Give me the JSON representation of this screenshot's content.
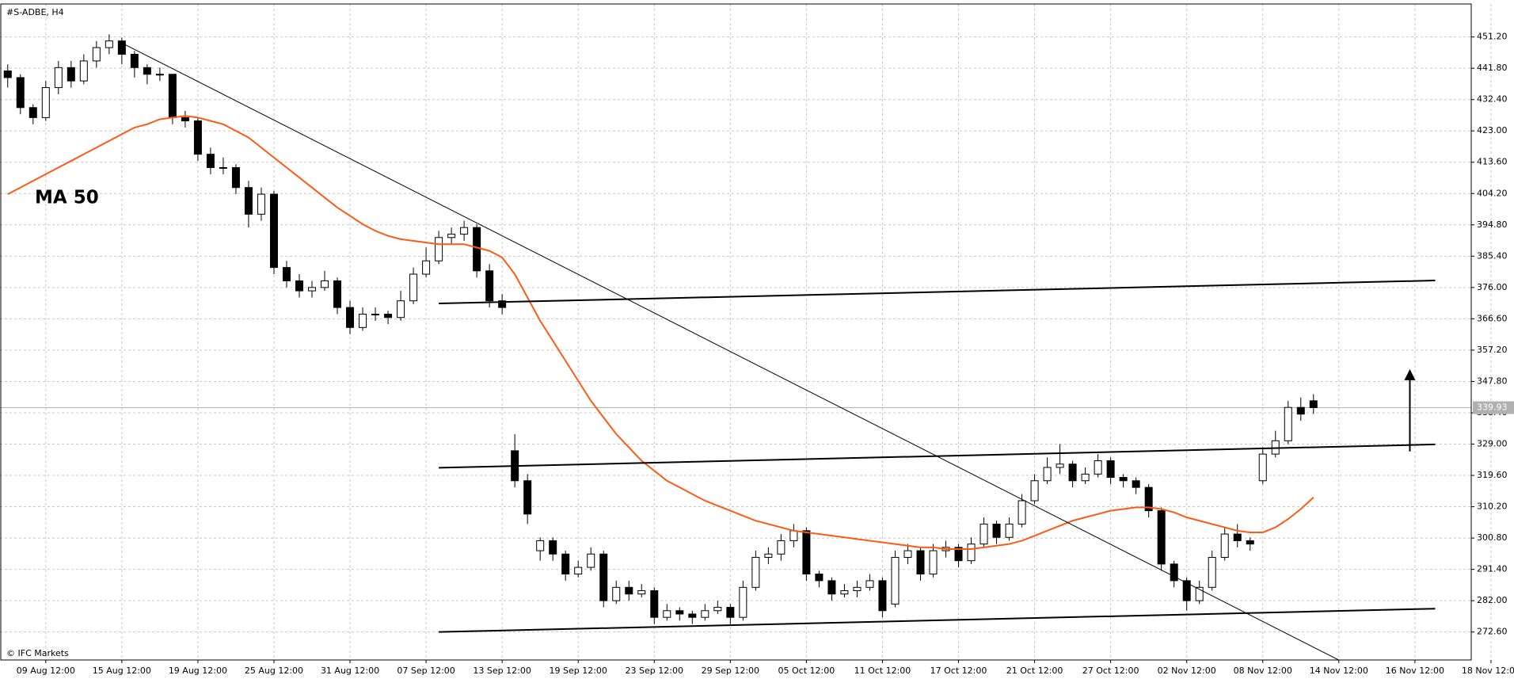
{
  "chart_data": {
    "type": "candlestick",
    "title": "#S-ADBE, H4",
    "source": "© IFC Markets",
    "categories": [
      null,
      null,
      null,
      "09 Aug 12:00",
      null,
      null,
      null,
      null,
      null,
      "15 Aug 12:00",
      null,
      null,
      null,
      null,
      null,
      "19 Aug 12:00",
      null,
      null,
      null,
      null,
      null,
      "25 Aug 12:00",
      null,
      null,
      null,
      null,
      null,
      "31 Aug 12:00",
      null,
      null,
      null,
      null,
      null,
      "07 Sep 12:00",
      null,
      null,
      null,
      null,
      null,
      "13 Sep 12:00",
      null,
      null,
      null,
      null,
      null,
      "19 Sep 12:00",
      null,
      null,
      null,
      null,
      null,
      "23 Sep 12:00",
      null,
      null,
      null,
      null,
      null,
      "29 Sep 12:00",
      null,
      null,
      null,
      null,
      null,
      "05 Oct 12:00",
      null,
      null,
      null,
      null,
      null,
      "11 Oct 12:00",
      null,
      null,
      null,
      null,
      null,
      "17 Oct 12:00",
      null,
      null,
      null,
      null,
      null,
      "21 Oct 12:00",
      null,
      null,
      null,
      null,
      null,
      "27 Oct 12:00",
      null,
      null,
      null,
      null,
      null,
      "02 Nov 12:00",
      null,
      null,
      null,
      null,
      null,
      "08 Nov 12:00",
      null,
      null,
      null,
      null,
      null,
      "14 Nov 12:00",
      null,
      null,
      null,
      null,
      null,
      "16 Nov 12:00",
      null,
      null,
      null,
      null,
      null,
      "18 Nov 12:00"
    ],
    "open": [
      441,
      439,
      430,
      427,
      436,
      442,
      438,
      444,
      448,
      450,
      446,
      442,
      440,
      440,
      427,
      426,
      416,
      412,
      412,
      406,
      398,
      404,
      382,
      378,
      375,
      376,
      378,
      370,
      364,
      368,
      368,
      367,
      372,
      380,
      384,
      391,
      392,
      394,
      381,
      372,
      327,
      318,
      297,
      300,
      296,
      290,
      292,
      296,
      282,
      286,
      284,
      285,
      277,
      279,
      278,
      277,
      279,
      280,
      277,
      286,
      295,
      296,
      300,
      303,
      290,
      288,
      284,
      285,
      286,
      288,
      281,
      295,
      297,
      290,
      297,
      298,
      294,
      299,
      305,
      301,
      305,
      312,
      318,
      322,
      323,
      318,
      320,
      324,
      319,
      318,
      316,
      309,
      293,
      288,
      282,
      286,
      295,
      302,
      300,
      318,
      326,
      330,
      340,
      342,
      null,
      null,
      null,
      null,
      null,
      null,
      null,
      null,
      null,
      null,
      null,
      null,
      null,
      null
    ],
    "high": [
      443,
      440,
      431,
      438,
      444,
      444,
      446,
      450,
      452,
      451,
      447,
      443,
      442,
      440,
      429,
      427,
      418,
      415,
      413,
      408,
      406,
      405,
      384,
      380,
      378,
      381,
      379,
      372,
      370,
      370,
      369,
      375,
      382,
      388,
      393,
      394,
      396,
      395,
      383,
      374,
      332,
      320,
      301,
      301,
      297,
      294,
      298,
      297,
      288,
      288,
      287,
      286,
      281,
      280,
      279,
      281,
      282,
      281,
      288,
      297,
      298,
      302,
      305,
      304,
      291,
      289,
      287,
      288,
      290,
      289,
      297,
      299,
      298,
      299,
      300,
      299,
      301,
      307,
      306,
      307,
      314,
      320,
      325,
      329,
      324,
      322,
      326,
      325,
      320,
      319,
      317,
      310,
      294,
      289,
      288,
      297,
      304,
      305,
      301,
      328,
      333,
      342,
      343,
      344,
      null,
      null,
      null,
      null,
      null,
      null,
      null,
      null,
      null,
      null,
      null,
      null,
      null,
      null
    ],
    "low": [
      436,
      428,
      425,
      426,
      434,
      436,
      437,
      442,
      446,
      443,
      439,
      437,
      438,
      425,
      424,
      414,
      410,
      410,
      404,
      394,
      396,
      380,
      376,
      373,
      373,
      375,
      368,
      362,
      363,
      366,
      365,
      366,
      371,
      379,
      383,
      389,
      390,
      379,
      370,
      368,
      316,
      305,
      294,
      294,
      288,
      289,
      291,
      280,
      281,
      282,
      283,
      275,
      276,
      276,
      275,
      276,
      278,
      275,
      276,
      285,
      293,
      294,
      298,
      288,
      286,
      282,
      283,
      283,
      285,
      277,
      280,
      293,
      288,
      289,
      295,
      292,
      293,
      298,
      299,
      300,
      304,
      311,
      317,
      320,
      316,
      317,
      319,
      317,
      316,
      314,
      307,
      291,
      286,
      279,
      281,
      285,
      294,
      298,
      297,
      317,
      325,
      329,
      336,
      338,
      null,
      null,
      null,
      null,
      null,
      null,
      null,
      null,
      null,
      null,
      null,
      null,
      null,
      null
    ],
    "close": [
      439,
      430,
      427,
      436,
      442,
      438,
      444,
      448,
      450,
      446,
      442,
      440,
      440,
      427,
      426,
      416,
      412,
      412,
      406,
      398,
      404,
      382,
      378,
      375,
      376,
      378,
      370,
      364,
      368,
      368,
      367,
      372,
      380,
      384,
      391,
      392,
      394,
      381,
      372,
      370,
      318,
      308,
      300,
      296,
      290,
      292,
      296,
      282,
      286,
      284,
      285,
      277,
      279,
      278,
      277,
      279,
      280,
      277,
      286,
      295,
      296,
      300,
      303,
      290,
      288,
      284,
      285,
      286,
      288,
      279,
      295,
      297,
      290,
      297,
      298,
      294,
      299,
      305,
      301,
      305,
      312,
      318,
      322,
      323,
      318,
      320,
      324,
      319,
      318,
      316,
      309,
      293,
      288,
      282,
      286,
      295,
      302,
      300,
      299,
      326,
      330,
      340,
      338,
      339.93,
      null,
      null,
      null,
      null,
      null,
      null,
      null,
      null,
      null,
      null,
      null,
      null,
      null,
      null
    ],
    "ma": {
      "name": "MA 50",
      "color": "#ff5a14",
      "values": [
        404,
        406,
        408,
        410,
        412,
        414,
        416,
        418,
        420,
        422,
        424,
        425,
        426.5,
        427,
        427.5,
        427,
        426,
        425,
        423,
        421,
        418,
        415,
        412,
        409,
        406,
        403,
        400,
        397.5,
        395,
        393,
        391.5,
        390.5,
        390,
        389.5,
        389,
        389,
        389,
        388,
        387,
        385,
        380,
        373,
        366,
        360,
        354,
        348,
        342,
        337,
        332,
        328,
        324,
        321,
        318,
        316,
        314,
        312,
        310.5,
        309,
        307.5,
        306,
        305,
        304,
        303,
        302.5,
        302,
        301.5,
        301,
        300.5,
        300,
        299.5,
        299,
        298.5,
        298,
        298,
        297.5,
        297.5,
        297.5,
        298,
        298.5,
        299,
        300,
        301.5,
        303,
        304.5,
        306,
        307,
        308,
        309,
        309.5,
        310,
        310,
        309.5,
        308.5,
        307,
        306,
        305,
        304,
        303,
        302.5,
        302.5,
        304,
        306.5,
        309.5,
        313,
        null,
        null,
        null,
        null,
        null,
        null,
        null,
        null,
        null,
        null,
        null,
        null,
        null,
        null
      ]
    },
    "last_price": 339.93,
    "ylim": [
      264.2,
      461.1
    ],
    "yticks": [
      {
        "value": 451.2,
        "label": "451.20"
      },
      {
        "value": 441.8,
        "label": "441.80"
      },
      {
        "value": 432.4,
        "label": "432.40"
      },
      {
        "value": 423,
        "label": "423.00"
      },
      {
        "value": 413.6,
        "label": "413.60"
      },
      {
        "value": 404.2,
        "label": "404.20"
      },
      {
        "value": 394.8,
        "label": "394.80"
      },
      {
        "value": 385.4,
        "label": "385.40"
      },
      {
        "value": 376,
        "label": "376.00"
      },
      {
        "value": 366.6,
        "label": "366.60"
      },
      {
        "value": 357.2,
        "label": "357.20"
      },
      {
        "value": 347.8,
        "label": "347.80"
      },
      {
        "value": 338.4,
        "label": "338.40"
      },
      {
        "value": 329,
        "label": "329.00"
      },
      {
        "value": 319.6,
        "label": "319.60"
      },
      {
        "value": 310.2,
        "label": "310.20"
      },
      {
        "value": 300.8,
        "label": "300.80"
      },
      {
        "value": 291.4,
        "label": "291.40"
      },
      {
        "value": 282,
        "label": "282.00"
      },
      {
        "value": 272.6,
        "label": "272.60"
      }
    ],
    "grid": true,
    "trendlines": [
      {
        "x": [
          9.1,
          105.3
        ],
        "y": [
          449.2,
          263.6
        ]
      },
      {
        "x": [
          34,
          112.6
        ],
        "y": [
          371.2,
          378.1
        ]
      },
      {
        "x": [
          34,
          112.6
        ],
        "y": [
          321.9,
          328.9
        ]
      },
      {
        "x": [
          34,
          112.6
        ],
        "y": [
          272.6,
          279.6
        ]
      }
    ],
    "arrow": {
      "x": 110.6,
      "y": [
        326.8,
        351.5
      ]
    }
  }
}
